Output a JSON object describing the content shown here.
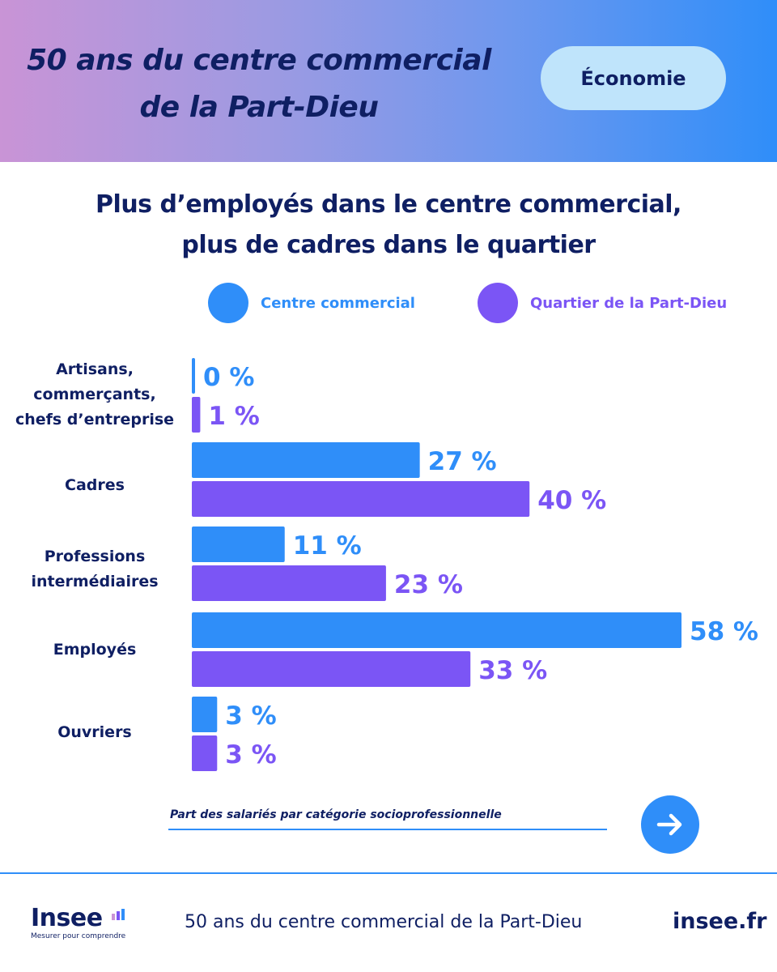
{
  "banner": {
    "title_line1": "50 ans du centre commercial",
    "title_line2": "de la Part-Dieu",
    "tag": "Économie"
  },
  "colors": {
    "navy": "#0f1f63",
    "blue": "#2f8ef9",
    "purple": "#7b55f5",
    "tag_bg": "#bfe4fb"
  },
  "chart_data": {
    "type": "bar",
    "orientation": "horizontal",
    "title": "Plus d’employés dans le centre commercial, plus de cadres dans le quartier",
    "title_lines": [
      "Plus d’employés dans le centre commercial,",
      "plus de cadres dans le quartier"
    ],
    "categories": [
      "Artisans, commerçants, chefs d’entreprise",
      "Cadres",
      "Professions intermédiaires",
      "Employés",
      "Ouvriers"
    ],
    "category_lines": [
      [
        "Artisans,",
        "commerçants,",
        "chefs d’entreprise"
      ],
      [
        "Cadres"
      ],
      [
        "Professions",
        "intermédiaires"
      ],
      [
        "Employés"
      ],
      [
        "Ouvriers"
      ]
    ],
    "series": [
      {
        "name": "Centre commercial",
        "color": "#2f8ef9",
        "values": [
          0,
          27,
          11,
          58,
          3
        ],
        "labels": [
          "0 %",
          "27 %",
          "11 %",
          "58 %",
          "3 %"
        ]
      },
      {
        "name": "Quartier de la Part-Dieu",
        "color": "#7b55f5",
        "values": [
          1,
          40,
          23,
          33,
          3
        ],
        "labels": [
          "1 %",
          "40 %",
          "23 %",
          "33 %",
          "3 %"
        ]
      }
    ],
    "unit": "%",
    "xlim": [
      0,
      58
    ],
    "legend": "top",
    "grid": false,
    "caption": "Part des salariés par catégorie socioprofessionnelle"
  },
  "footer": {
    "logo_text": "Insee",
    "logo_tagline": "Mesurer pour comprendre",
    "title": "50 ans du centre commercial de la Part-Dieu",
    "site": "insee.fr"
  },
  "icons": {
    "next": "arrow-right-icon",
    "logo": "insee-logo-bars-icon"
  }
}
